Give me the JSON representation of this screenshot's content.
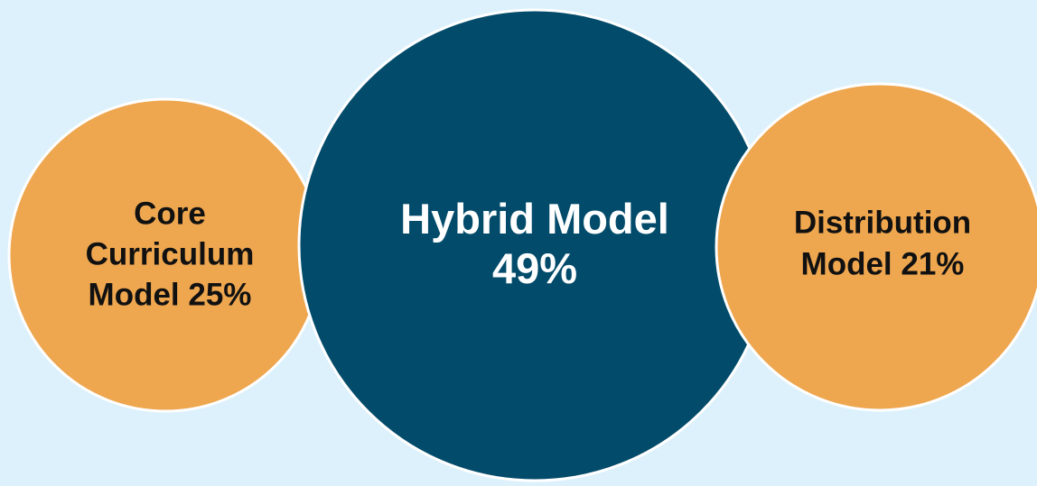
{
  "nodes": [
    {
      "lines": [
        "Core",
        "Curriculum",
        "Model 25%"
      ]
    },
    {
      "lines": [
        "Hybrid Model",
        "49%"
      ]
    },
    {
      "lines": [
        "Distribution",
        "Model 21%"
      ]
    }
  ]
}
